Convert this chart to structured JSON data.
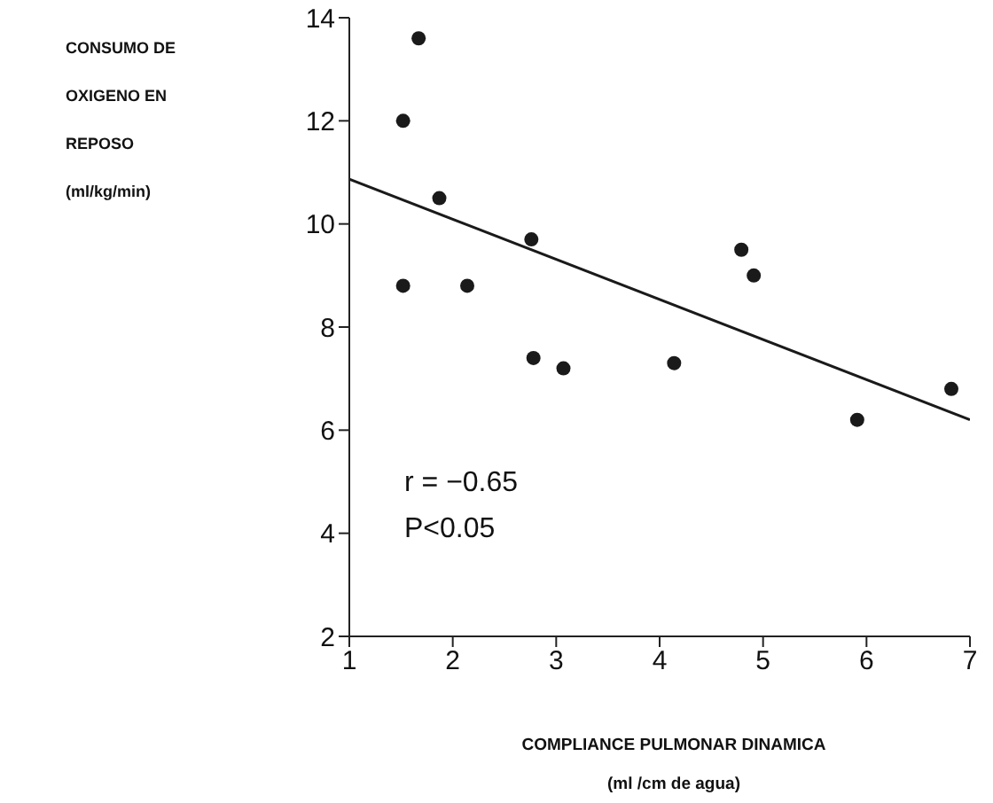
{
  "chart_data": {
    "type": "scatter",
    "xlabel": "COMPLIANCE PULMONAR DINAMICA\n(ml /cm de agua)",
    "ylabel": "CONSUMO DE\nOXIGENO EN\nREPOSO\n(ml/kg/min)",
    "xlim": [
      1,
      7
    ],
    "xticks": [
      1,
      2,
      3,
      4,
      5,
      6,
      7
    ],
    "ylim": [
      2,
      14
    ],
    "yticks": [
      2,
      4,
      6,
      8,
      10,
      12,
      14
    ],
    "annotations": [
      "r = −0.65",
      "P<0.05"
    ],
    "series": [
      {
        "color": "#1a1a1a",
        "marker": "circle",
        "x": [
          1.67,
          1.52,
          1.87,
          1.52,
          2.14,
          2.76,
          2.78,
          3.07,
          4.14,
          4.79,
          4.91,
          5.91,
          6.82
        ],
        "values": [
          13.6,
          12.0,
          10.5,
          8.8,
          8.8,
          9.7,
          7.4,
          7.2,
          7.3,
          9.5,
          9.0,
          6.2,
          6.8
        ]
      },
      {
        "type": "line",
        "color": "#1a1a1a",
        "x": [
          1,
          7
        ],
        "values": [
          10.87,
          6.2
        ]
      }
    ]
  }
}
